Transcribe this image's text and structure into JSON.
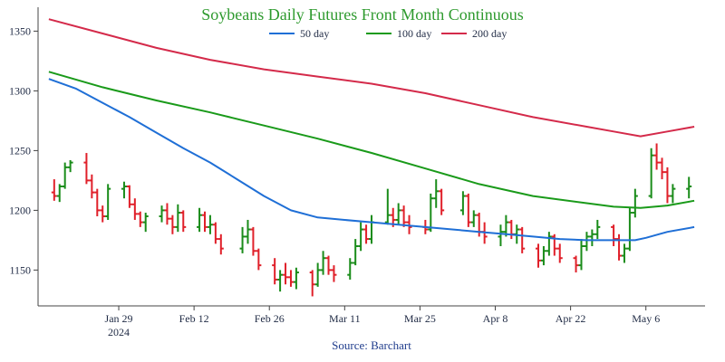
{
  "chart_data": {
    "type": "line",
    "title": "Soybeans Daily Futures Front Month Continuous",
    "source": "Source: Barchart",
    "colors": {
      "title": "#2e9a2e",
      "source": "#1f3c8c",
      "up": "#1a8c1a",
      "down": "#e0202a",
      "axis": "#444444"
    },
    "y_axis": {
      "range": [
        1120,
        1370
      ],
      "ticks": [
        1150,
        1200,
        1250,
        1300,
        1350
      ]
    },
    "x_axis": {
      "range_days": [
        0,
        113
      ],
      "ticks": [
        {
          "day": 28,
          "label": "Jan 29",
          "sublabel": "2024"
        },
        {
          "day": 42,
          "label": "Feb 12"
        },
        {
          "day": 56,
          "label": "Feb 26"
        },
        {
          "day": 70,
          "label": "Mar 11"
        },
        {
          "day": 84,
          "label": "Mar 25"
        },
        {
          "day": 98,
          "label": "Apr 8"
        },
        {
          "day": 112,
          "label": "Apr 22"
        },
        {
          "day": 126,
          "label": "May 6"
        }
      ]
    },
    "legend": [
      {
        "name": "50 day",
        "color": "#1f6fd6"
      },
      {
        "name": "100 day",
        "color": "#1a9a1a"
      },
      {
        "name": "200 day",
        "color": "#d42a4a"
      }
    ],
    "moving_averages": [
      {
        "name": "50 day",
        "color": "#1f6fd6",
        "points": [
          [
            15,
            1310
          ],
          [
            20,
            1302
          ],
          [
            25,
            1290
          ],
          [
            30,
            1278
          ],
          [
            35,
            1265
          ],
          [
            40,
            1252
          ],
          [
            45,
            1240
          ],
          [
            50,
            1226
          ],
          [
            55,
            1212
          ],
          [
            60,
            1200
          ],
          [
            65,
            1194
          ],
          [
            70,
            1192
          ],
          [
            75,
            1190
          ],
          [
            80,
            1188
          ],
          [
            85,
            1186
          ],
          [
            90,
            1184
          ],
          [
            95,
            1182
          ],
          [
            100,
            1180
          ],
          [
            105,
            1178
          ],
          [
            110,
            1176
          ],
          [
            115,
            1175
          ],
          [
            120,
            1175
          ],
          [
            124,
            1175
          ],
          [
            126,
            1177
          ],
          [
            130,
            1182
          ],
          [
            135,
            1186
          ]
        ]
      },
      {
        "name": "100 day",
        "color": "#1a9a1a",
        "points": [
          [
            15,
            1316
          ],
          [
            25,
            1303
          ],
          [
            35,
            1292
          ],
          [
            45,
            1282
          ],
          [
            55,
            1271
          ],
          [
            65,
            1260
          ],
          [
            75,
            1248
          ],
          [
            85,
            1235
          ],
          [
            95,
            1222
          ],
          [
            105,
            1212
          ],
          [
            115,
            1206
          ],
          [
            120,
            1203
          ],
          [
            125,
            1202
          ],
          [
            130,
            1204
          ],
          [
            135,
            1208
          ]
        ]
      },
      {
        "name": "200 day",
        "color": "#d42a4a",
        "points": [
          [
            15,
            1360
          ],
          [
            25,
            1348
          ],
          [
            35,
            1336
          ],
          [
            45,
            1326
          ],
          [
            55,
            1318
          ],
          [
            65,
            1312
          ],
          [
            75,
            1306
          ],
          [
            85,
            1298
          ],
          [
            95,
            1288
          ],
          [
            105,
            1278
          ],
          [
            115,
            1270
          ],
          [
            120,
            1266
          ],
          [
            125,
            1262
          ],
          [
            130,
            1266
          ],
          [
            135,
            1270
          ]
        ]
      }
    ],
    "ohlc": [
      {
        "date": "Jan 16",
        "day": 16,
        "open": 1215,
        "high": 1226,
        "low": 1208,
        "close": 1212
      },
      {
        "date": "Jan 17",
        "day": 17,
        "open": 1212,
        "high": 1222,
        "low": 1207,
        "close": 1220
      },
      {
        "date": "Jan 18",
        "day": 18,
        "open": 1220,
        "high": 1240,
        "low": 1218,
        "close": 1236
      },
      {
        "date": "Jan 19",
        "day": 19,
        "open": 1236,
        "high": 1242,
        "low": 1232,
        "close": 1240
      },
      {
        "date": "Jan 22",
        "day": 22,
        "open": 1240,
        "high": 1248,
        "low": 1222,
        "close": 1225
      },
      {
        "date": "Jan 23",
        "day": 23,
        "open": 1225,
        "high": 1230,
        "low": 1210,
        "close": 1215
      },
      {
        "date": "Jan 24",
        "day": 24,
        "open": 1215,
        "high": 1218,
        "low": 1195,
        "close": 1200
      },
      {
        "date": "Jan 25",
        "day": 25,
        "open": 1200,
        "high": 1204,
        "low": 1190,
        "close": 1195
      },
      {
        "date": "Jan 26",
        "day": 26,
        "open": 1195,
        "high": 1222,
        "low": 1192,
        "close": 1218
      },
      {
        "date": "Jan 29",
        "day": 29,
        "open": 1218,
        "high": 1224,
        "low": 1210,
        "close": 1220
      },
      {
        "date": "Jan 30",
        "day": 30,
        "open": 1220,
        "high": 1221,
        "low": 1202,
        "close": 1205
      },
      {
        "date": "Jan 31",
        "day": 31,
        "open": 1205,
        "high": 1210,
        "low": 1192,
        "close": 1197
      },
      {
        "date": "Feb 1",
        "day": 32,
        "open": 1197,
        "high": 1199,
        "low": 1186,
        "close": 1190
      },
      {
        "date": "Feb 2",
        "day": 33,
        "open": 1190,
        "high": 1198,
        "low": 1182,
        "close": 1195
      },
      {
        "date": "Feb 5",
        "day": 36,
        "open": 1195,
        "high": 1204,
        "low": 1190,
        "close": 1200
      },
      {
        "date": "Feb 6",
        "day": 37,
        "open": 1200,
        "high": 1206,
        "low": 1188,
        "close": 1193
      },
      {
        "date": "Feb 7",
        "day": 38,
        "open": 1193,
        "high": 1196,
        "low": 1180,
        "close": 1186
      },
      {
        "date": "Feb 8",
        "day": 39,
        "open": 1186,
        "high": 1205,
        "low": 1182,
        "close": 1198
      },
      {
        "date": "Feb 9",
        "day": 40,
        "open": 1198,
        "high": 1200,
        "low": 1182,
        "close": 1186
      },
      {
        "date": "Feb 12",
        "day": 43,
        "open": 1186,
        "high": 1202,
        "low": 1182,
        "close": 1196
      },
      {
        "date": "Feb 13",
        "day": 44,
        "open": 1196,
        "high": 1199,
        "low": 1182,
        "close": 1186
      },
      {
        "date": "Feb 14",
        "day": 45,
        "open": 1186,
        "high": 1196,
        "low": 1180,
        "close": 1188
      },
      {
        "date": "Feb 15",
        "day": 46,
        "open": 1188,
        "high": 1190,
        "low": 1172,
        "close": 1176
      },
      {
        "date": "Feb 16",
        "day": 47,
        "open": 1176,
        "high": 1180,
        "low": 1163,
        "close": 1168
      },
      {
        "date": "Feb 20",
        "day": 51,
        "open": 1168,
        "high": 1186,
        "low": 1164,
        "close": 1178
      },
      {
        "date": "Feb 21",
        "day": 52,
        "open": 1178,
        "high": 1192,
        "low": 1172,
        "close": 1184
      },
      {
        "date": "Feb 22",
        "day": 53,
        "open": 1184,
        "high": 1186,
        "low": 1162,
        "close": 1166
      },
      {
        "date": "Feb 23",
        "day": 54,
        "open": 1166,
        "high": 1168,
        "low": 1150,
        "close": 1154
      },
      {
        "date": "Feb 26",
        "day": 57,
        "open": 1154,
        "high": 1160,
        "low": 1138,
        "close": 1142
      },
      {
        "date": "Feb 27",
        "day": 58,
        "open": 1142,
        "high": 1150,
        "low": 1132,
        "close": 1146
      },
      {
        "date": "Feb 28",
        "day": 59,
        "open": 1146,
        "high": 1156,
        "low": 1138,
        "close": 1144
      },
      {
        "date": "Feb 29",
        "day": 60,
        "open": 1144,
        "high": 1150,
        "low": 1136,
        "close": 1140
      },
      {
        "date": "Mar 1",
        "day": 61,
        "open": 1140,
        "high": 1152,
        "low": 1134,
        "close": 1148
      },
      {
        "date": "Mar 4",
        "day": 64,
        "open": 1148,
        "high": 1150,
        "low": 1128,
        "close": 1138
      },
      {
        "date": "Mar 5",
        "day": 65,
        "open": 1138,
        "high": 1156,
        "low": 1136,
        "close": 1150
      },
      {
        "date": "Mar 6",
        "day": 66,
        "open": 1150,
        "high": 1166,
        "low": 1146,
        "close": 1160
      },
      {
        "date": "Mar 7",
        "day": 67,
        "open": 1160,
        "high": 1162,
        "low": 1146,
        "close": 1150
      },
      {
        "date": "Mar 8",
        "day": 68,
        "open": 1150,
        "high": 1154,
        "low": 1140,
        "close": 1146
      },
      {
        "date": "Mar 11",
        "day": 71,
        "open": 1146,
        "high": 1160,
        "low": 1142,
        "close": 1156
      },
      {
        "date": "Mar 12",
        "day": 72,
        "open": 1156,
        "high": 1176,
        "low": 1154,
        "close": 1170
      },
      {
        "date": "Mar 13",
        "day": 73,
        "open": 1170,
        "high": 1190,
        "low": 1166,
        "close": 1184
      },
      {
        "date": "Mar 14",
        "day": 74,
        "open": 1184,
        "high": 1188,
        "low": 1172,
        "close": 1176
      },
      {
        "date": "Mar 15",
        "day": 75,
        "open": 1176,
        "high": 1196,
        "low": 1172,
        "close": 1190
      },
      {
        "date": "Mar 18",
        "day": 78,
        "open": 1190,
        "high": 1218,
        "low": 1188,
        "close": 1196
      },
      {
        "date": "Mar 19",
        "day": 79,
        "open": 1196,
        "high": 1202,
        "low": 1186,
        "close": 1192
      },
      {
        "date": "Mar 20",
        "day": 80,
        "open": 1192,
        "high": 1206,
        "low": 1188,
        "close": 1200
      },
      {
        "date": "Mar 21",
        "day": 81,
        "open": 1200,
        "high": 1204,
        "low": 1186,
        "close": 1190
      },
      {
        "date": "Mar 22",
        "day": 82,
        "open": 1190,
        "high": 1196,
        "low": 1180,
        "close": 1186
      },
      {
        "date": "Mar 25",
        "day": 85,
        "open": 1186,
        "high": 1192,
        "low": 1180,
        "close": 1184
      },
      {
        "date": "Mar 26",
        "day": 86,
        "open": 1184,
        "high": 1214,
        "low": 1182,
        "close": 1210
      },
      {
        "date": "Mar 27",
        "day": 87,
        "open": 1210,
        "high": 1226,
        "low": 1202,
        "close": 1216
      },
      {
        "date": "Mar 28",
        "day": 88,
        "open": 1216,
        "high": 1218,
        "low": 1196,
        "close": 1200
      },
      {
        "date": "Apr 1",
        "day": 92,
        "open": 1200,
        "high": 1216,
        "low": 1196,
        "close": 1212
      },
      {
        "date": "Apr 2",
        "day": 93,
        "open": 1212,
        "high": 1214,
        "low": 1186,
        "close": 1190
      },
      {
        "date": "Apr 3",
        "day": 94,
        "open": 1190,
        "high": 1200,
        "low": 1186,
        "close": 1196
      },
      {
        "date": "Apr 4",
        "day": 95,
        "open": 1196,
        "high": 1198,
        "low": 1178,
        "close": 1182
      },
      {
        "date": "Apr 5",
        "day": 96,
        "open": 1182,
        "high": 1190,
        "low": 1172,
        "close": 1178
      },
      {
        "date": "Apr 8",
        "day": 99,
        "open": 1178,
        "high": 1188,
        "low": 1170,
        "close": 1182
      },
      {
        "date": "Apr 9",
        "day": 100,
        "open": 1182,
        "high": 1196,
        "low": 1178,
        "close": 1190
      },
      {
        "date": "Apr 10",
        "day": 101,
        "open": 1190,
        "high": 1192,
        "low": 1176,
        "close": 1180
      },
      {
        "date": "Apr 11",
        "day": 102,
        "open": 1180,
        "high": 1188,
        "low": 1172,
        "close": 1184
      },
      {
        "date": "Apr 12",
        "day": 103,
        "open": 1184,
        "high": 1186,
        "low": 1164,
        "close": 1168
      },
      {
        "date": "Apr 15",
        "day": 106,
        "open": 1168,
        "high": 1172,
        "low": 1152,
        "close": 1158
      },
      {
        "date": "Apr 16",
        "day": 107,
        "open": 1158,
        "high": 1170,
        "low": 1154,
        "close": 1166
      },
      {
        "date": "Apr 17",
        "day": 108,
        "open": 1166,
        "high": 1182,
        "low": 1162,
        "close": 1178
      },
      {
        "date": "Apr 18",
        "day": 109,
        "open": 1178,
        "high": 1180,
        "low": 1162,
        "close": 1168
      },
      {
        "date": "Apr 19",
        "day": 110,
        "open": 1168,
        "high": 1172,
        "low": 1156,
        "close": 1160
      },
      {
        "date": "Apr 22",
        "day": 113,
        "open": 1160,
        "high": 1162,
        "low": 1148,
        "close": 1154
      },
      {
        "date": "Apr 23",
        "day": 114,
        "open": 1154,
        "high": 1176,
        "low": 1150,
        "close": 1170
      },
      {
        "date": "Apr 24",
        "day": 115,
        "open": 1170,
        "high": 1182,
        "low": 1166,
        "close": 1178
      },
      {
        "date": "Apr 25",
        "day": 116,
        "open": 1178,
        "high": 1184,
        "low": 1170,
        "close": 1180
      },
      {
        "date": "Apr 26",
        "day": 117,
        "open": 1180,
        "high": 1192,
        "low": 1176,
        "close": 1186
      },
      {
        "date": "Apr 29",
        "day": 120,
        "open": 1186,
        "high": 1188,
        "low": 1170,
        "close": 1176
      },
      {
        "date": "Apr 30",
        "day": 121,
        "open": 1176,
        "high": 1180,
        "low": 1158,
        "close": 1162
      },
      {
        "date": "May 1",
        "day": 122,
        "open": 1162,
        "high": 1172,
        "low": 1156,
        "close": 1168
      },
      {
        "date": "May 2",
        "day": 123,
        "open": 1168,
        "high": 1202,
        "low": 1166,
        "close": 1198
      },
      {
        "date": "May 3",
        "day": 124,
        "open": 1198,
        "high": 1218,
        "low": 1194,
        "close": 1212
      },
      {
        "date": "May 6",
        "day": 127,
        "open": 1212,
        "high": 1252,
        "low": 1210,
        "close": 1246
      },
      {
        "date": "May 7",
        "day": 128,
        "open": 1246,
        "high": 1256,
        "low": 1234,
        "close": 1240
      },
      {
        "date": "May 8",
        "day": 129,
        "open": 1240,
        "high": 1244,
        "low": 1226,
        "close": 1232
      },
      {
        "date": "May 9",
        "day": 130,
        "open": 1232,
        "high": 1236,
        "low": 1206,
        "close": 1212
      },
      {
        "date": "May 10",
        "day": 131,
        "open": 1212,
        "high": 1222,
        "low": 1206,
        "close": 1218
      },
      {
        "date": "May 13",
        "day": 134,
        "open": 1218,
        "high": 1228,
        "low": 1210,
        "close": 1220
      }
    ]
  }
}
